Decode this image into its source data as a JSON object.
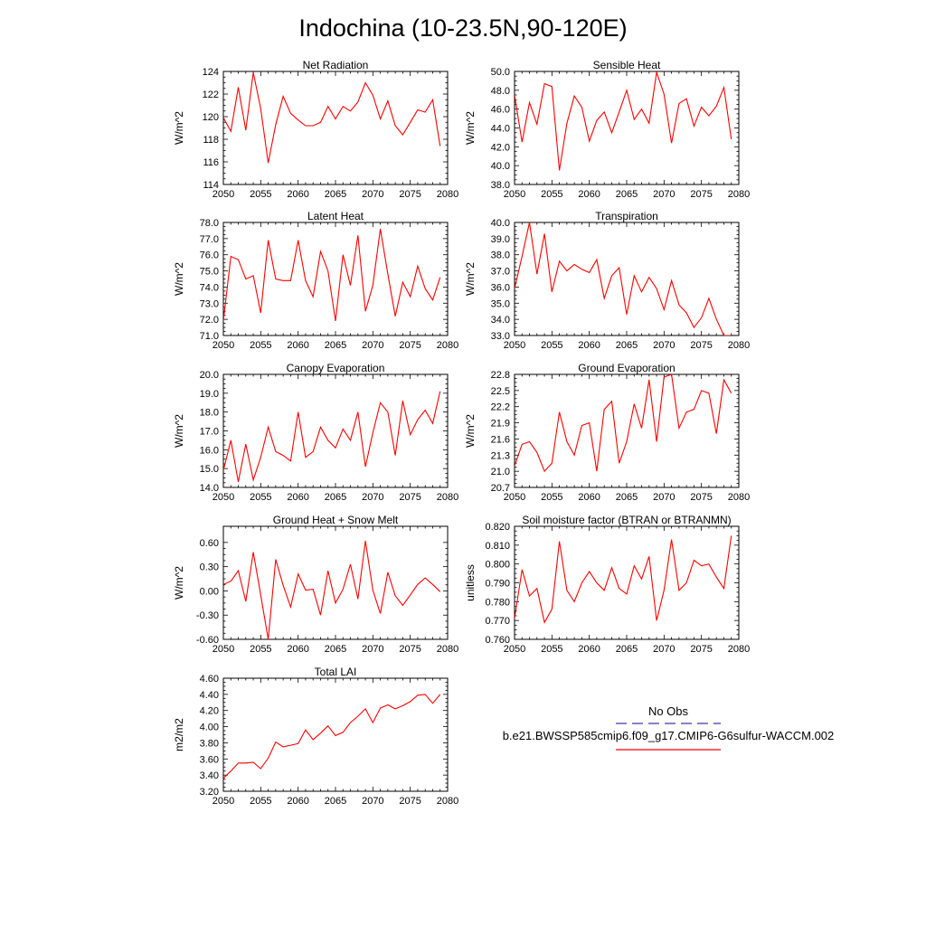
{
  "page_title": "Indochina (10-23.5N,90-120E)",
  "legend": {
    "obs_label": "No Obs",
    "model_label": "b.e21.BWSSP585cmip6.f09_g17.CMIP6-G6sulfur-WACCM.002",
    "obs_color": "#3a3aa0",
    "model_color": "#ff0000"
  },
  "chart_data": [
    {
      "type": "line",
      "title": "Net Radiation",
      "ylabel": "W/m^2",
      "xlim": [
        2050,
        2080
      ],
      "ylim": [
        114,
        124
      ],
      "xticks": [
        2050,
        2055,
        2060,
        2065,
        2070,
        2075,
        2080
      ],
      "yticks": [
        114,
        116,
        118,
        120,
        122,
        124
      ],
      "ytick_labels": [
        "114",
        "116",
        "118",
        "120",
        "122",
        "124"
      ],
      "x": [
        2050,
        2051,
        2052,
        2053,
        2054,
        2055,
        2056,
        2057,
        2058,
        2059,
        2060,
        2061,
        2062,
        2063,
        2064,
        2065,
        2066,
        2067,
        2068,
        2069,
        2070,
        2071,
        2072,
        2073,
        2074,
        2075,
        2076,
        2077,
        2078,
        2079
      ],
      "values": [
        119.9,
        118.7,
        122.6,
        118.8,
        123.9,
        120.7,
        115.9,
        119.3,
        121.8,
        120.3,
        119.7,
        119.2,
        119.2,
        119.5,
        120.9,
        119.8,
        120.9,
        120.5,
        121.3,
        123.0,
        121.9,
        119.8,
        121.4,
        119.2,
        118.4,
        119.5,
        120.6,
        120.4,
        121.5,
        117.4
      ]
    },
    {
      "type": "line",
      "title": "Sensible Heat",
      "ylabel": "W/m^2",
      "xlim": [
        2050,
        2080
      ],
      "ylim": [
        38,
        50
      ],
      "xticks": [
        2050,
        2055,
        2060,
        2065,
        2070,
        2075,
        2080
      ],
      "yticks": [
        38,
        40,
        42,
        44,
        46,
        48,
        50
      ],
      "ytick_labels": [
        "38.0",
        "40.0",
        "42.0",
        "44.0",
        "46.0",
        "48.0",
        "50.0"
      ],
      "x": [
        2050,
        2051,
        2052,
        2053,
        2054,
        2055,
        2056,
        2057,
        2058,
        2059,
        2060,
        2061,
        2062,
        2063,
        2064,
        2065,
        2066,
        2067,
        2068,
        2069,
        2070,
        2071,
        2072,
        2073,
        2074,
        2075,
        2076,
        2077,
        2078,
        2079
      ],
      "values": [
        47.5,
        42.5,
        46.7,
        44.4,
        48.7,
        48.4,
        39.5,
        44.5,
        47.4,
        46.2,
        42.6,
        44.8,
        45.7,
        43.5,
        45.7,
        48.0,
        44.9,
        46.0,
        44.5,
        49.9,
        47.6,
        42.4,
        46.6,
        47.1,
        44.2,
        46.2,
        45.3,
        46.3,
        48.3,
        42.8
      ]
    },
    {
      "type": "line",
      "title": "Latent Heat",
      "ylabel": "W/m^2",
      "xlim": [
        2050,
        2080
      ],
      "ylim": [
        71,
        78
      ],
      "xticks": [
        2050,
        2055,
        2060,
        2065,
        2070,
        2075,
        2080
      ],
      "yticks": [
        71,
        72,
        73,
        74,
        75,
        76,
        77,
        78
      ],
      "ytick_labels": [
        "71.0",
        "72.0",
        "73.0",
        "74.0",
        "75.0",
        "76.0",
        "77.0",
        "78.0"
      ],
      "x": [
        2050,
        2051,
        2052,
        2053,
        2054,
        2055,
        2056,
        2057,
        2058,
        2059,
        2060,
        2061,
        2062,
        2063,
        2064,
        2065,
        2066,
        2067,
        2068,
        2069,
        2070,
        2071,
        2072,
        2073,
        2074,
        2075,
        2076,
        2077,
        2078,
        2079
      ],
      "values": [
        71.9,
        75.9,
        75.7,
        74.5,
        74.7,
        72.4,
        76.9,
        74.5,
        74.4,
        74.4,
        76.9,
        74.4,
        73.4,
        76.2,
        75.0,
        71.9,
        76.0,
        74.1,
        77.2,
        72.5,
        74.1,
        77.6,
        74.8,
        72.2,
        74.3,
        73.4,
        75.3,
        73.9,
        73.2,
        74.6
      ]
    },
    {
      "type": "line",
      "title": "Transpiration",
      "ylabel": "W/m^2",
      "xlim": [
        2050,
        2080
      ],
      "ylim": [
        33,
        40
      ],
      "xticks": [
        2050,
        2055,
        2060,
        2065,
        2070,
        2075,
        2080
      ],
      "yticks": [
        33,
        34,
        35,
        36,
        37,
        38,
        39,
        40
      ],
      "ytick_labels": [
        "33.0",
        "34.0",
        "35.0",
        "36.0",
        "37.0",
        "38.0",
        "39.0",
        "40.0"
      ],
      "x": [
        2050,
        2051,
        2052,
        2053,
        2054,
        2055,
        2056,
        2057,
        2058,
        2059,
        2060,
        2061,
        2062,
        2063,
        2064,
        2065,
        2066,
        2067,
        2068,
        2069,
        2070,
        2071,
        2072,
        2073,
        2074,
        2075,
        2076,
        2077,
        2078,
        2079
      ],
      "values": [
        35.9,
        37.9,
        40.0,
        36.8,
        39.3,
        35.7,
        37.6,
        37.0,
        37.4,
        37.1,
        36.9,
        37.7,
        35.3,
        36.7,
        37.2,
        34.3,
        36.7,
        35.7,
        36.6,
        35.9,
        34.6,
        36.4,
        34.9,
        34.4,
        33.5,
        34.1,
        35.3,
        34.0,
        33.0,
        33.0
      ]
    },
    {
      "type": "line",
      "title": "Canopy Evaporation",
      "ylabel": "W/m^2",
      "xlim": [
        2050,
        2080
      ],
      "ylim": [
        14,
        20
      ],
      "xticks": [
        2050,
        2055,
        2060,
        2065,
        2070,
        2075,
        2080
      ],
      "yticks": [
        14,
        15,
        16,
        17,
        18,
        19,
        20
      ],
      "ytick_labels": [
        "14.0",
        "15.0",
        "16.0",
        "17.0",
        "18.0",
        "19.0",
        "20.0"
      ],
      "x": [
        2050,
        2051,
        2052,
        2053,
        2054,
        2055,
        2056,
        2057,
        2058,
        2059,
        2060,
        2061,
        2062,
        2063,
        2064,
        2065,
        2066,
        2067,
        2068,
        2069,
        2070,
        2071,
        2072,
        2073,
        2074,
        2075,
        2076,
        2077,
        2078,
        2079
      ],
      "values": [
        14.9,
        16.5,
        14.3,
        16.3,
        14.4,
        15.6,
        17.2,
        15.9,
        15.7,
        15.4,
        18.0,
        15.6,
        15.9,
        17.2,
        16.5,
        16.1,
        17.1,
        16.5,
        18.0,
        15.1,
        16.9,
        18.5,
        18.0,
        15.7,
        18.6,
        16.8,
        17.6,
        18.1,
        17.4,
        19.1
      ]
    },
    {
      "type": "line",
      "title": "Ground Evaporation",
      "ylabel": "W/m^2",
      "xlim": [
        2050,
        2080
      ],
      "ylim": [
        20.7,
        22.8
      ],
      "xticks": [
        2050,
        2055,
        2060,
        2065,
        2070,
        2075,
        2080
      ],
      "yticks": [
        20.7,
        21.0,
        21.3,
        21.6,
        21.9,
        22.2,
        22.5,
        22.8
      ],
      "ytick_labels": [
        "20.7",
        "21.0",
        "21.3",
        "21.6",
        "21.9",
        "22.2",
        "22.5",
        "22.8"
      ],
      "x": [
        2050,
        2051,
        2052,
        2053,
        2054,
        2055,
        2056,
        2057,
        2058,
        2059,
        2060,
        2061,
        2062,
        2063,
        2064,
        2065,
        2066,
        2067,
        2068,
        2069,
        2070,
        2071,
        2072,
        2073,
        2074,
        2075,
        2076,
        2077,
        2078,
        2079
      ],
      "values": [
        21.1,
        21.5,
        21.55,
        21.35,
        21.0,
        21.15,
        22.1,
        21.55,
        21.3,
        21.85,
        21.9,
        21.0,
        22.15,
        22.3,
        21.15,
        21.55,
        22.25,
        21.8,
        22.7,
        21.55,
        22.75,
        22.8,
        21.8,
        22.1,
        22.15,
        22.5,
        22.45,
        21.7,
        22.7,
        22.45
      ]
    },
    {
      "type": "line",
      "title": "Ground Heat + Snow Melt",
      "ylabel": "W/m^2",
      "xlim": [
        2050,
        2080
      ],
      "ylim": [
        -0.6,
        0.8
      ],
      "xticks": [
        2050,
        2055,
        2060,
        2065,
        2070,
        2075,
        2080
      ],
      "yticks": [
        -0.6,
        -0.3,
        0.0,
        0.3,
        0.6
      ],
      "ytick_labels": [
        "-0.60",
        "-0.30",
        "0.00",
        "0.30",
        "0.60"
      ],
      "x": [
        2050,
        2051,
        2052,
        2053,
        2054,
        2055,
        2056,
        2057,
        2058,
        2059,
        2060,
        2061,
        2062,
        2063,
        2064,
        2065,
        2066,
        2067,
        2068,
        2069,
        2070,
        2071,
        2072,
        2073,
        2074,
        2075,
        2076,
        2077,
        2078,
        2079
      ],
      "values": [
        0.08,
        0.12,
        0.25,
        -0.13,
        0.48,
        -0.05,
        -0.6,
        0.39,
        0.07,
        -0.2,
        0.21,
        0.01,
        0.02,
        -0.3,
        0.25,
        -0.15,
        0.02,
        0.33,
        -0.1,
        0.62,
        0.01,
        -0.28,
        0.23,
        -0.06,
        -0.18,
        -0.05,
        0.08,
        0.16,
        0.08,
        -0.01
      ]
    },
    {
      "type": "line",
      "title": "Soil moisture factor (BTRAN or BTRANMN)",
      "ylabel": "unitless",
      "xlim": [
        2050,
        2080
      ],
      "ylim": [
        0.76,
        0.82
      ],
      "xticks": [
        2050,
        2055,
        2060,
        2065,
        2070,
        2075,
        2080
      ],
      "yticks": [
        0.76,
        0.77,
        0.78,
        0.79,
        0.8,
        0.81,
        0.82
      ],
      "ytick_labels": [
        "0.760",
        "0.770",
        "0.780",
        "0.790",
        "0.800",
        "0.810",
        "0.820"
      ],
      "x": [
        2050,
        2051,
        2052,
        2053,
        2054,
        2055,
        2056,
        2057,
        2058,
        2059,
        2060,
        2061,
        2062,
        2063,
        2064,
        2065,
        2066,
        2067,
        2068,
        2069,
        2070,
        2071,
        2072,
        2073,
        2074,
        2075,
        2076,
        2077,
        2078,
        2079
      ],
      "values": [
        0.771,
        0.797,
        0.783,
        0.787,
        0.769,
        0.776,
        0.812,
        0.786,
        0.78,
        0.79,
        0.796,
        0.79,
        0.786,
        0.798,
        0.787,
        0.784,
        0.799,
        0.792,
        0.804,
        0.77,
        0.786,
        0.813,
        0.786,
        0.79,
        0.802,
        0.799,
        0.8,
        0.793,
        0.787,
        0.815
      ]
    },
    {
      "type": "line",
      "title": "Total LAI",
      "ylabel": "m2/m2",
      "xlim": [
        2050,
        2080
      ],
      "ylim": [
        3.2,
        4.6
      ],
      "xticks": [
        2050,
        2055,
        2060,
        2065,
        2070,
        2075,
        2080
      ],
      "yticks": [
        3.2,
        3.4,
        3.6,
        3.8,
        4.0,
        4.2,
        4.4,
        4.6
      ],
      "ytick_labels": [
        "3.20",
        "3.40",
        "3.60",
        "3.80",
        "4.00",
        "4.20",
        "4.40",
        "4.60"
      ],
      "x": [
        2050,
        2051,
        2052,
        2053,
        2054,
        2055,
        2056,
        2057,
        2058,
        2059,
        2060,
        2061,
        2062,
        2063,
        2064,
        2065,
        2066,
        2067,
        2068,
        2069,
        2070,
        2071,
        2072,
        2073,
        2074,
        2075,
        2076,
        2077,
        2078,
        2079
      ],
      "values": [
        3.36,
        3.45,
        3.55,
        3.55,
        3.56,
        3.48,
        3.61,
        3.81,
        3.75,
        3.77,
        3.79,
        3.96,
        3.84,
        3.92,
        4.01,
        3.89,
        3.93,
        4.05,
        4.13,
        4.22,
        4.05,
        4.23,
        4.27,
        4.22,
        4.26,
        4.31,
        4.39,
        4.4,
        4.29,
        4.4
      ]
    }
  ]
}
